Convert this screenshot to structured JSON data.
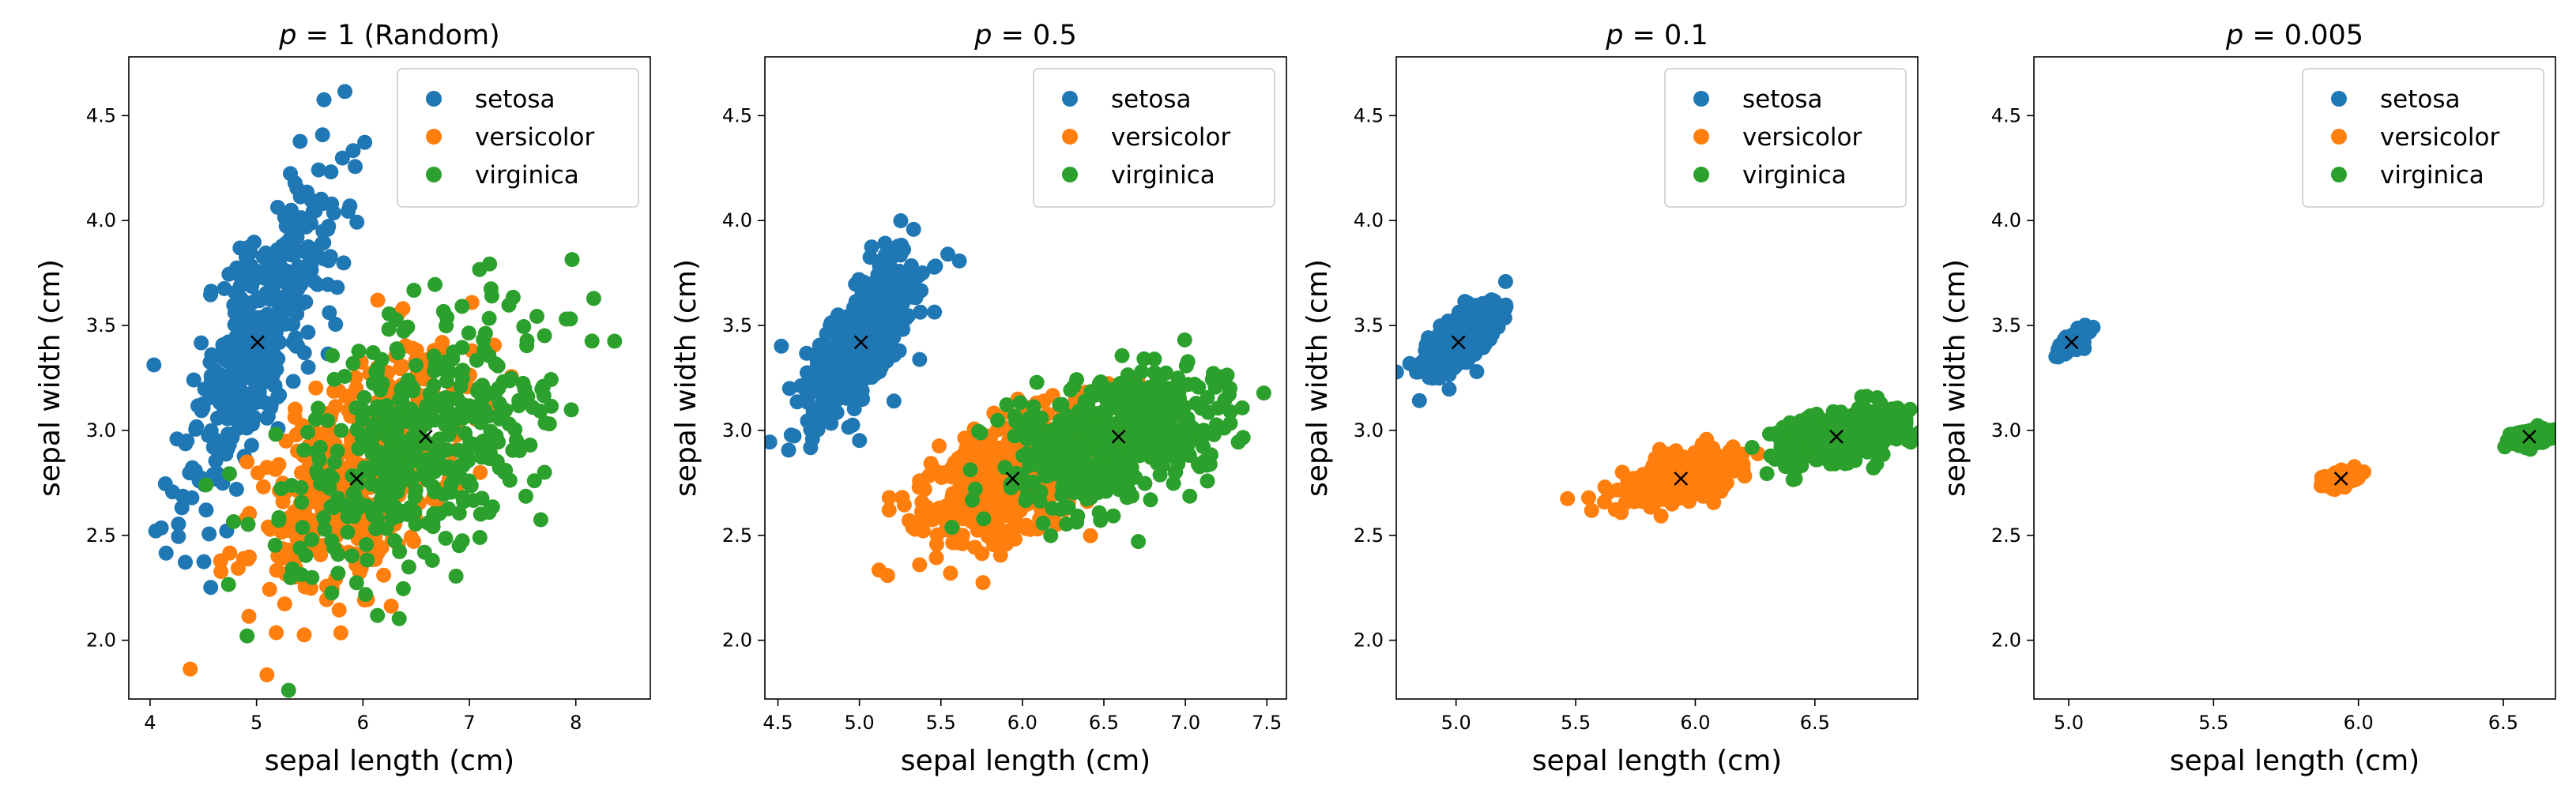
{
  "chart_data": [
    {
      "type": "scatter",
      "title": {
        "var": "p",
        "op": " = ",
        "rest": "1 (Random)"
      },
      "xlabel": "sepal length (cm)",
      "ylabel": "sepal width (cm)",
      "xlim": [
        3.8,
        8.7
      ],
      "ylim": [
        1.72,
        4.78
      ],
      "xticks": [
        4,
        5,
        6,
        7,
        8
      ],
      "xtick_labels": [
        "4",
        "5",
        "6",
        "7",
        "8"
      ],
      "yticks": [
        2.0,
        2.5,
        3.0,
        3.5,
        4.0,
        4.5
      ],
      "ytick_labels": [
        "2.0",
        "2.5",
        "3.0",
        "3.5",
        "4.0",
        "4.5"
      ],
      "legend": {
        "position": "top-right",
        "entries": [
          "setosa",
          "versicolor",
          "virginica"
        ]
      },
      "series": [
        {
          "name": "setosa",
          "color": "#1f77b4",
          "center": [
            5.01,
            3.42
          ],
          "sd": [
            0.35,
            0.38
          ],
          "corr": 0.74,
          "count": 420
        },
        {
          "name": "versicolor",
          "color": "#ff7f0e",
          "center": [
            5.94,
            2.77
          ],
          "sd": [
            0.52,
            0.31
          ],
          "corr": 0.53,
          "count": 420
        },
        {
          "name": "virginica",
          "color": "#2ca02c",
          "center": [
            6.59,
            2.97
          ],
          "sd": [
            0.64,
            0.32
          ],
          "corr": 0.46,
          "count": 420
        }
      ],
      "mean_markers": [
        [
          5.01,
          3.42
        ],
        [
          5.94,
          2.77
        ],
        [
          6.59,
          2.97
        ]
      ]
    },
    {
      "type": "scatter",
      "title": {
        "var": "p",
        "op": " =  ",
        "rest": "0.5"
      },
      "xlabel": "sepal length (cm)",
      "ylabel": "sepal width (cm)",
      "xlim": [
        4.42,
        7.62
      ],
      "ylim": [
        1.72,
        4.78
      ],
      "xticks": [
        4.5,
        5.0,
        5.5,
        6.0,
        6.5,
        7.0,
        7.5
      ],
      "xtick_labels": [
        "4.5",
        "5.0",
        "5.5",
        "6.0",
        "6.5",
        "7.0",
        "7.5"
      ],
      "yticks": [
        2.0,
        2.5,
        3.0,
        3.5,
        4.0,
        4.5
      ],
      "ytick_labels": [
        "2.0",
        "2.5",
        "3.0",
        "3.5",
        "4.0",
        "4.5"
      ],
      "legend": {
        "position": "top-right",
        "entries": [
          "setosa",
          "versicolor",
          "virginica"
        ]
      },
      "series": [
        {
          "name": "setosa",
          "color": "#1f77b4",
          "center": [
            5.01,
            3.42
          ],
          "sd": [
            0.17,
            0.19
          ],
          "corr": 0.74,
          "count": 600
        },
        {
          "name": "versicolor",
          "color": "#ff7f0e",
          "center": [
            5.94,
            2.77
          ],
          "sd": [
            0.26,
            0.155
          ],
          "corr": 0.53,
          "count": 600
        },
        {
          "name": "virginica",
          "color": "#2ca02c",
          "center": [
            6.59,
            2.97
          ],
          "sd": [
            0.32,
            0.16
          ],
          "corr": 0.46,
          "count": 600
        }
      ],
      "mean_markers": [
        [
          5.01,
          3.42
        ],
        [
          5.94,
          2.77
        ],
        [
          6.59,
          2.97
        ]
      ]
    },
    {
      "type": "scatter",
      "title": {
        "var": "p",
        "op": " = ",
        "rest": "0.1"
      },
      "xlabel": "sepal length (cm)",
      "ylabel": "sepal width (cm)",
      "xlim": [
        4.75,
        6.93
      ],
      "ylim": [
        1.72,
        4.78
      ],
      "xticks": [
        5.0,
        5.5,
        6.0,
        6.5
      ],
      "xtick_labels": [
        "5.0",
        "5.5",
        "6.0",
        "6.5"
      ],
      "yticks": [
        2.0,
        2.5,
        3.0,
        3.5,
        4.0,
        4.5
      ],
      "ytick_labels": [
        "2.0",
        "2.5",
        "3.0",
        "3.5",
        "4.0",
        "4.5"
      ],
      "legend": {
        "position": "top-right",
        "entries": [
          "setosa",
          "versicolor",
          "virginica"
        ]
      },
      "series": [
        {
          "name": "setosa",
          "color": "#1f77b4",
          "center": [
            5.01,
            3.42
          ],
          "sd": [
            0.075,
            0.08
          ],
          "corr": 0.74,
          "count": 500
        },
        {
          "name": "versicolor",
          "color": "#ff7f0e",
          "center": [
            5.94,
            2.77
          ],
          "sd": [
            0.11,
            0.062
          ],
          "corr": 0.53,
          "count": 500
        },
        {
          "name": "virginica",
          "color": "#2ca02c",
          "center": [
            6.59,
            2.97
          ],
          "sd": [
            0.13,
            0.065
          ],
          "corr": 0.46,
          "count": 500
        }
      ],
      "mean_markers": [
        [
          5.01,
          3.42
        ],
        [
          5.94,
          2.77
        ],
        [
          6.59,
          2.97
        ]
      ]
    },
    {
      "type": "scatter",
      "title": {
        "var": "p",
        "op": " = ",
        "rest": "0.005"
      },
      "xlabel": "sepal length (cm)",
      "ylabel": "sepal width (cm)",
      "xlim": [
        4.88,
        6.68
      ],
      "ylim": [
        1.72,
        4.78
      ],
      "xticks": [
        5.0,
        5.5,
        6.0,
        6.5
      ],
      "xtick_labels": [
        "5.0",
        "5.5",
        "6.0",
        "6.5"
      ],
      "yticks": [
        2.0,
        2.5,
        3.0,
        3.5,
        4.0,
        4.5
      ],
      "ytick_labels": [
        "2.0",
        "2.5",
        "3.0",
        "3.5",
        "4.0",
        "4.5"
      ],
      "legend": {
        "position": "top-right",
        "entries": [
          "setosa",
          "versicolor",
          "virginica"
        ]
      },
      "series": [
        {
          "name": "setosa",
          "color": "#1f77b4",
          "center": [
            5.01,
            3.42
          ],
          "sd": [
            0.02,
            0.022
          ],
          "corr": 0.74,
          "count": 300
        },
        {
          "name": "versicolor",
          "color": "#ff7f0e",
          "center": [
            5.94,
            2.77
          ],
          "sd": [
            0.03,
            0.017
          ],
          "corr": 0.53,
          "count": 300
        },
        {
          "name": "virginica",
          "color": "#2ca02c",
          "center": [
            6.59,
            2.97
          ],
          "sd": [
            0.035,
            0.018
          ],
          "corr": 0.46,
          "count": 300
        }
      ],
      "mean_markers": [
        [
          5.01,
          3.42
        ],
        [
          5.94,
          2.77
        ],
        [
          6.59,
          2.97
        ]
      ]
    }
  ]
}
